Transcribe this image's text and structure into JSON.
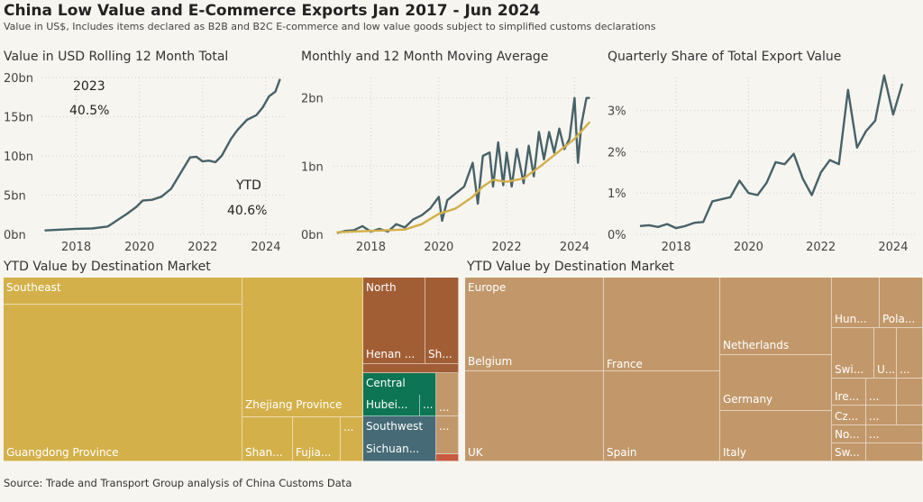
{
  "header": {
    "title": "China Low Value and E-Commerce Exports Jan 2017 - Jun 2024",
    "subtitle": "Value in US$, Includes items declared as B2B and B2C E-commerce and low value goods subject to simplified customs declarations"
  },
  "source": "Source: Trade and Transport Group analysis of China Customs Data",
  "colors": {
    "line": "#466269",
    "moving_average": "#d4af49",
    "grid": "#cfcfcf"
  },
  "chart_data": [
    {
      "type": "line",
      "title": "Value in USD Rolling 12 Month Total",
      "x_ticks": [
        2018,
        2020,
        2022,
        2024
      ],
      "y_ticks": [
        "0bn",
        "5bn",
        "10bn",
        "15bn",
        "20bn"
      ],
      "xlim": [
        2016.9,
        2024.6
      ],
      "ylim": [
        0,
        20
      ],
      "annotations": [
        {
          "label": "2023",
          "value": "40.5%"
        },
        {
          "label": "YTD",
          "value": "40.6%"
        }
      ],
      "series": [
        {
          "x": [
            2017.0,
            2017.5,
            2018.0,
            2018.5,
            2019.0,
            2019.3,
            2019.6,
            2019.9,
            2020.1,
            2020.4,
            2020.7,
            2021.0,
            2021.3,
            2021.6,
            2021.8,
            2022.0,
            2022.2,
            2022.4,
            2022.6,
            2022.9,
            2023.1,
            2023.4,
            2023.7,
            2023.9,
            2024.1,
            2024.3,
            2024.45
          ],
          "y": [
            0.5,
            0.6,
            0.7,
            0.75,
            1.0,
            1.8,
            2.6,
            3.5,
            4.3,
            4.4,
            4.8,
            5.8,
            7.8,
            9.8,
            9.9,
            9.3,
            9.4,
            9.2,
            10.0,
            12.2,
            13.3,
            14.6,
            15.2,
            16.2,
            17.6,
            18.2,
            19.8
          ]
        }
      ]
    },
    {
      "type": "line",
      "title": "Monthly and 12 Month Moving Average",
      "x_ticks": [
        2018,
        2020,
        2022,
        2024
      ],
      "y_ticks": [
        "0bn",
        "1bn",
        "2bn"
      ],
      "xlim": [
        2016.9,
        2024.6
      ],
      "ylim": [
        0,
        2.3
      ],
      "series": [
        {
          "name": "Monthly",
          "x": [
            2017.0,
            2017.25,
            2017.5,
            2017.75,
            2018.0,
            2018.25,
            2018.5,
            2018.75,
            2019.0,
            2019.25,
            2019.5,
            2019.75,
            2020.0,
            2020.1,
            2020.25,
            2020.5,
            2020.75,
            2021.0,
            2021.15,
            2021.3,
            2021.5,
            2021.6,
            2021.75,
            2021.9,
            2022.0,
            2022.15,
            2022.3,
            2022.5,
            2022.65,
            2022.8,
            2022.95,
            2023.1,
            2023.25,
            2023.4,
            2023.55,
            2023.7,
            2023.85,
            2024.0,
            2024.1,
            2024.2,
            2024.35,
            2024.45
          ],
          "y": [
            0.02,
            0.05,
            0.06,
            0.12,
            0.04,
            0.08,
            0.04,
            0.15,
            0.1,
            0.22,
            0.28,
            0.38,
            0.55,
            0.2,
            0.5,
            0.6,
            0.7,
            1.05,
            0.45,
            1.15,
            1.2,
            0.7,
            1.35,
            0.72,
            1.2,
            0.7,
            1.25,
            0.75,
            1.3,
            0.85,
            1.5,
            1.1,
            1.5,
            1.2,
            1.55,
            1.25,
            1.4,
            2.0,
            1.05,
            1.6,
            2.0,
            2.0
          ]
        },
        {
          "name": "12 Month Moving Average",
          "x": [
            2017.0,
            2018.0,
            2019.0,
            2019.5,
            2020.0,
            2020.5,
            2021.0,
            2021.3,
            2021.6,
            2022.0,
            2022.5,
            2023.0,
            2023.5,
            2024.0,
            2024.45
          ],
          "y": [
            0.03,
            0.05,
            0.07,
            0.15,
            0.3,
            0.38,
            0.55,
            0.7,
            0.8,
            0.77,
            0.82,
            1.0,
            1.2,
            1.4,
            1.65
          ]
        }
      ]
    },
    {
      "type": "line",
      "title": "Quarterly Share of Total Export Value",
      "x_ticks": [
        2018,
        2020,
        2022,
        2024
      ],
      "y_ticks": [
        "0%",
        "1%",
        "2%",
        "3%"
      ],
      "xlim": [
        2016.9,
        2024.6
      ],
      "ylim": [
        0,
        3.8
      ],
      "series": [
        {
          "x": [
            2017.0,
            2017.25,
            2017.5,
            2017.75,
            2018.0,
            2018.25,
            2018.5,
            2018.75,
            2019.0,
            2019.25,
            2019.5,
            2019.75,
            2020.0,
            2020.25,
            2020.5,
            2020.75,
            2021.0,
            2021.25,
            2021.5,
            2021.75,
            2022.0,
            2022.25,
            2022.5,
            2022.75,
            2023.0,
            2023.25,
            2023.5,
            2023.75,
            2024.0,
            2024.25
          ],
          "y": [
            0.2,
            0.22,
            0.18,
            0.25,
            0.15,
            0.2,
            0.28,
            0.3,
            0.8,
            0.85,
            0.9,
            1.3,
            1.0,
            0.95,
            1.25,
            1.75,
            1.7,
            1.95,
            1.35,
            0.95,
            1.5,
            1.8,
            1.7,
            3.5,
            2.1,
            2.5,
            2.75,
            3.85,
            2.9,
            3.65
          ]
        }
      ]
    },
    {
      "type": "treemap",
      "title": "YTD Value by Destination Market",
      "labels": [
        "Southeast",
        "Guangdong Province",
        "Zhejiang Province",
        "Shan...",
        "Fujia...",
        "...",
        "North",
        "Henan ...",
        "Sh...",
        "Central",
        "Hubei...",
        "...",
        "...",
        "Southwest",
        "Sichuan...",
        "..."
      ]
    },
    {
      "type": "treemap",
      "title": "YTD Value by Destination Market",
      "labels": [
        "Europe",
        "Belgium",
        "UK",
        "France",
        "Spain",
        "Netherlands",
        "Germany",
        "Italy",
        "Hun...",
        "Pola...",
        "Swi...",
        "U...",
        "...",
        "Ire...",
        "...",
        "Cz...",
        "...",
        "No...",
        "...",
        "Sw..."
      ]
    }
  ]
}
